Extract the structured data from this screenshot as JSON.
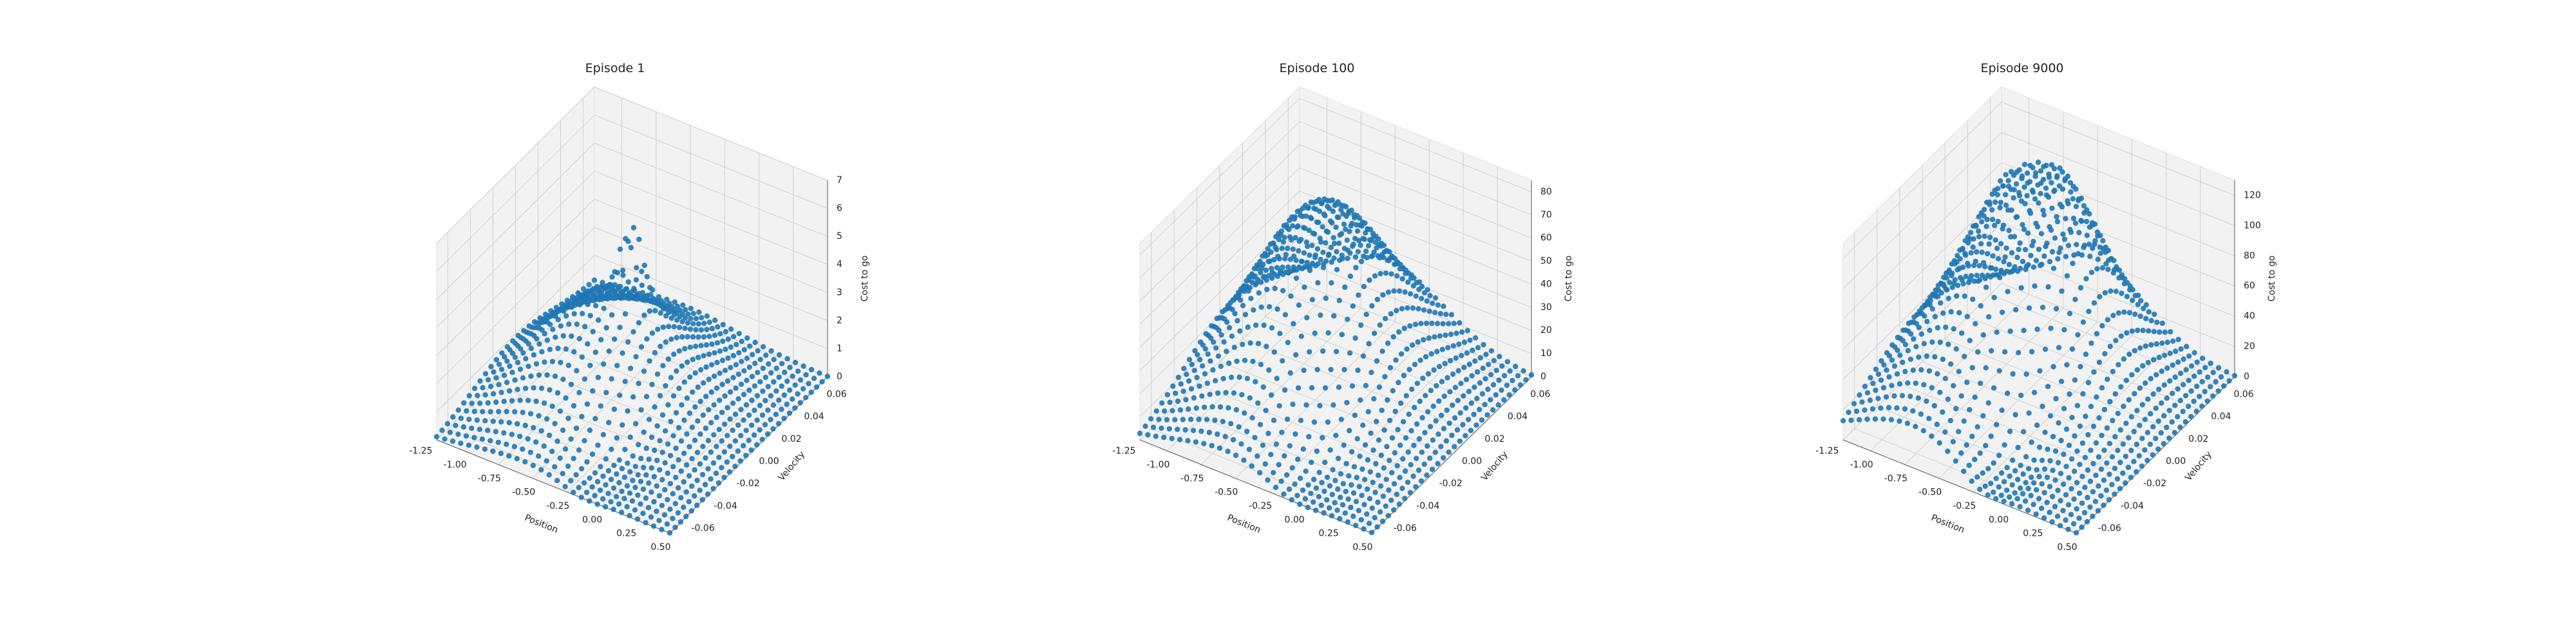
{
  "figure": {
    "background": "#ffffff",
    "pane_color": "#f2f2f2",
    "grid_color": "#d0d0d0",
    "point_color": "#1f77b4"
  },
  "chart_data": [
    {
      "type": "scatter3d",
      "title": "Episode 1",
      "xlabel": "Position",
      "ylabel": "Velocity",
      "zlabel": "Cost to go",
      "xlim": [
        -1.2,
        0.5
      ],
      "ylim": [
        -0.07,
        0.07
      ],
      "zlim": [
        0,
        7
      ],
      "xticks": [
        "-1.25",
        "-1.00",
        "-0.75",
        "-0.50",
        "-0.25",
        "0.00",
        "0.25",
        "0.50"
      ],
      "yticks": [
        "-0.06",
        "-0.04",
        "-0.02",
        "0.00",
        "0.02",
        "0.04",
        "0.06"
      ],
      "zticks": [
        "0",
        "1",
        "2",
        "3",
        "4",
        "5",
        "6",
        "7"
      ],
      "grid": true,
      "surface": {
        "grid_x": 30,
        "grid_y": 30,
        "features": [
          {
            "x": -0.55,
            "y": 0.0,
            "sx": 0.38,
            "sy": 0.035,
            "h": 3.6
          },
          {
            "x": -0.45,
            "y": 0.012,
            "sx": 0.06,
            "sy": 0.008,
            "h": 2.6
          },
          {
            "x": -0.15,
            "y": -0.035,
            "sx": 0.15,
            "sy": 0.02,
            "h": -1.2
          }
        ]
      }
    },
    {
      "type": "scatter3d",
      "title": "Episode 100",
      "xlabel": "Position",
      "ylabel": "Velocity",
      "zlabel": "Cost to go",
      "xlim": [
        -1.2,
        0.5
      ],
      "ylim": [
        -0.07,
        0.07
      ],
      "zlim": [
        0,
        85
      ],
      "xticks": [
        "-1.25",
        "-1.00",
        "-0.75",
        "-0.50",
        "-0.25",
        "0.00",
        "0.25",
        "0.50"
      ],
      "yticks": [
        "-0.06",
        "-0.04",
        "-0.02",
        "0.00",
        "0.02",
        "0.04",
        "0.06"
      ],
      "zticks": [
        "0",
        "10",
        "20",
        "30",
        "40",
        "50",
        "60",
        "70",
        "80"
      ],
      "grid": true,
      "surface": {
        "grid_x": 30,
        "grid_y": 30,
        "features": [
          {
            "x": -0.55,
            "y": 0.01,
            "sx": 0.4,
            "sy": 0.04,
            "h": 78
          },
          {
            "x": -0.1,
            "y": -0.04,
            "sx": 0.18,
            "sy": 0.02,
            "h": -15
          }
        ]
      }
    },
    {
      "type": "scatter3d",
      "title": "Episode 9000",
      "xlabel": "Position",
      "ylabel": "Velocity",
      "zlabel": "Cost to go",
      "xlim": [
        -1.2,
        0.5
      ],
      "ylim": [
        -0.07,
        0.07
      ],
      "zlim": [
        0,
        130
      ],
      "xticks": [
        "-1.25",
        "-1.00",
        "-0.75",
        "-0.50",
        "-0.25",
        "0.00",
        "0.25",
        "0.50"
      ],
      "yticks": [
        "-0.06",
        "-0.04",
        "-0.02",
        "0.00",
        "0.02",
        "0.04",
        "0.06"
      ],
      "zticks": [
        "0",
        "20",
        "40",
        "60",
        "80",
        "100",
        "120"
      ],
      "grid": true,
      "surface": {
        "grid_x": 30,
        "grid_y": 30,
        "features": [
          {
            "x": -0.5,
            "y": 0.025,
            "sx": 0.35,
            "sy": 0.03,
            "h": 115
          },
          {
            "x": -0.7,
            "y": -0.02,
            "sx": 0.4,
            "sy": 0.04,
            "h": 60
          },
          {
            "x": -0.2,
            "y": -0.04,
            "sx": 0.15,
            "sy": 0.02,
            "h": -30
          }
        ]
      }
    }
  ]
}
